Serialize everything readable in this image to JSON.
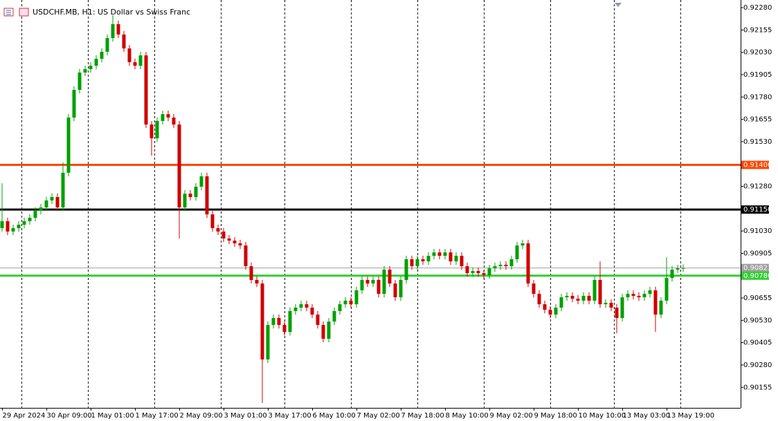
{
  "chart_data": {
    "type": "candlestick",
    "title": "USDCHF.MB, H1: US Dollar vs Swiss Franc",
    "up_color": "#00a000",
    "down_color": "#d00000",
    "grid": true,
    "xlim": [
      -0.375,
      133.375
    ],
    "ylim": [
      0.9004,
      0.92323
    ],
    "xticks": [
      {
        "value": 0,
        "label": "29 Apr 2024"
      },
      {
        "value": 8,
        "label": "30 Apr 09:00"
      },
      {
        "value": 16,
        "label": "1 May 01:00"
      },
      {
        "value": 24,
        "label": "1 May 17:00"
      },
      {
        "value": 32,
        "label": "2 May 09:00"
      },
      {
        "value": 40,
        "label": "3 May 01:00"
      },
      {
        "value": 48,
        "label": "3 May 17:00"
      },
      {
        "value": 56,
        "label": "6 May 10:00"
      },
      {
        "value": 64,
        "label": "7 May 02:00"
      },
      {
        "value": 72,
        "label": "7 May 18:00"
      },
      {
        "value": 80,
        "label": "8 May 10:00"
      },
      {
        "value": 88,
        "label": "9 May 02:00"
      },
      {
        "value": 96,
        "label": "9 May 18:00"
      },
      {
        "value": 104,
        "label": "10 May 10:00"
      },
      {
        "value": 112,
        "label": "13 May 03:00"
      },
      {
        "value": 120,
        "label": "13 May 19:00"
      }
    ],
    "xgrid": [
      3.5,
      15.5,
      27.5,
      39.5,
      51,
      63,
      75,
      87,
      99,
      110.5,
      122.5
    ],
    "yticks": [
      {
        "value": 0.9228,
        "label": "0.92280"
      },
      {
        "value": 0.92155,
        "label": "0.92155"
      },
      {
        "value": 0.9203,
        "label": "0.92030"
      },
      {
        "value": 0.91905,
        "label": "0.91905"
      },
      {
        "value": 0.9178,
        "label": "0.91780"
      },
      {
        "value": 0.91655,
        "label": "0.91655"
      },
      {
        "value": 0.9153,
        "label": "0.91530"
      },
      {
        "value": 0.9128,
        "label": "0.91280"
      },
      {
        "value": 0.9103,
        "label": "0.91030"
      },
      {
        "value": 0.90905,
        "label": "0.90905"
      },
      {
        "value": 0.90655,
        "label": "0.90655"
      },
      {
        "value": 0.9053,
        "label": "0.90530"
      },
      {
        "value": 0.90405,
        "label": "0.90405"
      },
      {
        "value": 0.9028,
        "label": "0.90280"
      },
      {
        "value": 0.90155,
        "label": "0.90155"
      }
    ],
    "hlines": [
      {
        "value": 0.914,
        "label": "0.91400",
        "color": "#ff4500"
      },
      {
        "value": 0.9115,
        "label": "0.91150",
        "color": "#000000"
      },
      {
        "value": 0.90823,
        "label": "0.90823",
        "color": "#a0a0a0"
      },
      {
        "value": 0.9078,
        "label": "0.90780",
        "color": "#32cd32"
      }
    ],
    "open": [
      0.91046,
      0.91085,
      0.91027,
      0.91046,
      0.91065,
      0.91085,
      0.91104,
      0.91143,
      0.91162,
      0.91201,
      0.9122,
      0.91162,
      0.91356,
      0.91665,
      0.9182,
      0.91917,
      0.91936,
      0.91955,
      0.91994,
      0.92033,
      0.9211,
      0.92188,
      0.9213,
      0.92052,
      0.91975,
      0.91955,
      0.92013,
      0.91626,
      0.91549,
      0.91646,
      0.91684,
      0.91665,
      0.91626,
      0.91162,
      0.91239,
      0.9122,
      0.91278,
      0.91336,
      0.91123,
      0.91046,
      0.91027,
      0.90988,
      0.90976,
      0.90961,
      0.90949,
      0.90833,
      0.90756,
      0.90736,
      0.90311,
      0.90504,
      0.90543,
      0.90504,
      0.90465,
      0.90582,
      0.90601,
      0.9062,
      0.90601,
      0.90562,
      0.90504,
      0.90427,
      0.90523,
      0.90582,
      0.9062,
      0.9064,
      0.9062,
      0.90698,
      0.90756,
      0.90736,
      0.90756,
      0.90678,
      0.90814,
      0.90736,
      0.90659,
      0.90756,
      0.90872,
      0.90833,
      0.90872,
      0.9086,
      0.90891,
      0.9091,
      0.90891,
      0.9091,
      0.9086,
      0.90891,
      0.90833,
      0.90794,
      0.90806,
      0.90794,
      0.90783,
      0.90821,
      0.90833,
      0.90841,
      0.90833,
      0.90872,
      0.90949,
      0.90961,
      0.90736,
      0.90678,
      0.9062,
      0.90589,
      0.90562,
      0.90601,
      0.90659,
      0.90667,
      0.90651,
      0.9064,
      0.90667,
      0.9064,
      0.90756,
      0.9062,
      0.90628,
      0.90601,
      0.90543,
      0.90659,
      0.90678,
      0.90667,
      0.90659,
      0.90678,
      0.90698,
      0.90562,
      0.9064,
      0.90767,
      0.90814,
      0.90821
    ],
    "high": [
      0.91297,
      0.91105,
      0.91066,
      0.91085,
      0.91105,
      0.91124,
      0.91163,
      0.91182,
      0.91221,
      0.9124,
      0.9124,
      0.91414,
      0.91685,
      0.9184,
      0.91937,
      0.91956,
      0.91975,
      0.92014,
      0.92053,
      0.9213,
      0.92238,
      0.92208,
      0.9215,
      0.92072,
      0.91995,
      0.92033,
      0.92033,
      0.91646,
      0.91666,
      0.91704,
      0.91704,
      0.91685,
      0.91646,
      0.91259,
      0.91259,
      0.91298,
      0.91356,
      0.91356,
      0.91143,
      0.91066,
      0.91047,
      0.91008,
      0.90996,
      0.90981,
      0.90969,
      0.90853,
      0.90776,
      0.90756,
      0.90524,
      0.90563,
      0.90563,
      0.90524,
      0.90602,
      0.90621,
      0.9064,
      0.9064,
      0.90621,
      0.90582,
      0.90524,
      0.90543,
      0.90602,
      0.9064,
      0.9066,
      0.9066,
      0.90718,
      0.90776,
      0.90776,
      0.90776,
      0.90776,
      0.90834,
      0.90834,
      0.90756,
      0.90776,
      0.90892,
      0.90892,
      0.90892,
      0.90892,
      0.90911,
      0.9093,
      0.9093,
      0.9093,
      0.9093,
      0.90911,
      0.90911,
      0.90853,
      0.90826,
      0.90826,
      0.90814,
      0.90841,
      0.90853,
      0.90861,
      0.90861,
      0.90892,
      0.90969,
      0.90981,
      0.90981,
      0.90756,
      0.90698,
      0.9064,
      0.90609,
      0.90621,
      0.90679,
      0.90687,
      0.90687,
      0.90671,
      0.90687,
      0.90687,
      0.90776,
      0.9086,
      0.90648,
      0.90648,
      0.90621,
      0.90679,
      0.90698,
      0.90698,
      0.90687,
      0.90698,
      0.90718,
      0.90718,
      0.9066,
      0.90883,
      0.90834,
      0.90841,
      0.90843
    ],
    "low": [
      0.91026,
      0.91007,
      0.91007,
      0.91026,
      0.91045,
      0.91065,
      0.91084,
      0.91123,
      0.91142,
      0.91181,
      0.91142,
      0.91142,
      0.91336,
      0.91645,
      0.918,
      0.91897,
      0.91916,
      0.91935,
      0.91974,
      0.92013,
      0.9209,
      0.9211,
      0.92032,
      0.91955,
      0.91935,
      0.91935,
      0.91606,
      0.91452,
      0.91529,
      0.91626,
      0.91645,
      0.91606,
      0.90988,
      0.91142,
      0.912,
      0.912,
      0.91258,
      0.91103,
      0.91026,
      0.91007,
      0.90968,
      0.90956,
      0.90941,
      0.90929,
      0.90813,
      0.90736,
      0.90716,
      0.90067,
      0.90291,
      0.90484,
      0.90484,
      0.90445,
      0.90445,
      0.90562,
      0.90581,
      0.90581,
      0.90542,
      0.90484,
      0.90407,
      0.90407,
      0.90503,
      0.90562,
      0.906,
      0.906,
      0.906,
      0.90678,
      0.90716,
      0.90716,
      0.90658,
      0.90658,
      0.90716,
      0.90639,
      0.90639,
      0.90736,
      0.90813,
      0.90813,
      0.9084,
      0.9084,
      0.90871,
      0.90871,
      0.90871,
      0.9084,
      0.9084,
      0.90813,
      0.90774,
      0.90774,
      0.90774,
      0.90763,
      0.90763,
      0.90801,
      0.90813,
      0.90813,
      0.90813,
      0.90852,
      0.90929,
      0.90716,
      0.90658,
      0.906,
      0.90569,
      0.90542,
      0.90542,
      0.90581,
      0.90639,
      0.90631,
      0.9062,
      0.9062,
      0.9062,
      0.9062,
      0.906,
      0.906,
      0.90581,
      0.90458,
      0.90523,
      0.90639,
      0.90647,
      0.90639,
      0.90639,
      0.90658,
      0.90465,
      0.90542,
      0.9062,
      0.90747,
      0.90794,
      0.90801
    ],
    "close": [
      0.91085,
      0.91027,
      0.91046,
      0.91065,
      0.91085,
      0.91104,
      0.91143,
      0.91162,
      0.91201,
      0.9122,
      0.91162,
      0.91356,
      0.91665,
      0.9182,
      0.91917,
      0.91936,
      0.91955,
      0.91994,
      0.92033,
      0.9211,
      0.92188,
      0.9213,
      0.92052,
      0.91975,
      0.91955,
      0.92013,
      0.91626,
      0.91549,
      0.91646,
      0.91684,
      0.91665,
      0.91626,
      0.91162,
      0.91239,
      0.9122,
      0.91278,
      0.91336,
      0.91123,
      0.91046,
      0.91027,
      0.90988,
      0.90976,
      0.90961,
      0.90949,
      0.90833,
      0.90756,
      0.90736,
      0.90311,
      0.90504,
      0.90543,
      0.90504,
      0.90465,
      0.90582,
      0.90601,
      0.9062,
      0.90601,
      0.90562,
      0.90504,
      0.90427,
      0.90523,
      0.90582,
      0.9062,
      0.9064,
      0.9062,
      0.90698,
      0.90756,
      0.90736,
      0.90756,
      0.90678,
      0.90814,
      0.90736,
      0.90659,
      0.90756,
      0.90872,
      0.90833,
      0.90872,
      0.9086,
      0.90891,
      0.9091,
      0.90891,
      0.9091,
      0.9086,
      0.90891,
      0.90833,
      0.90794,
      0.90806,
      0.90794,
      0.90783,
      0.90821,
      0.90833,
      0.90841,
      0.90833,
      0.90872,
      0.90949,
      0.90961,
      0.90736,
      0.90678,
      0.9062,
      0.90589,
      0.90562,
      0.90601,
      0.90659,
      0.90667,
      0.90651,
      0.9064,
      0.90667,
      0.9064,
      0.90756,
      0.9062,
      0.90628,
      0.90601,
      0.90543,
      0.90659,
      0.90678,
      0.90667,
      0.90659,
      0.90678,
      0.90698,
      0.90562,
      0.9064,
      0.90767,
      0.90814,
      0.90821,
      0.90823
    ]
  }
}
